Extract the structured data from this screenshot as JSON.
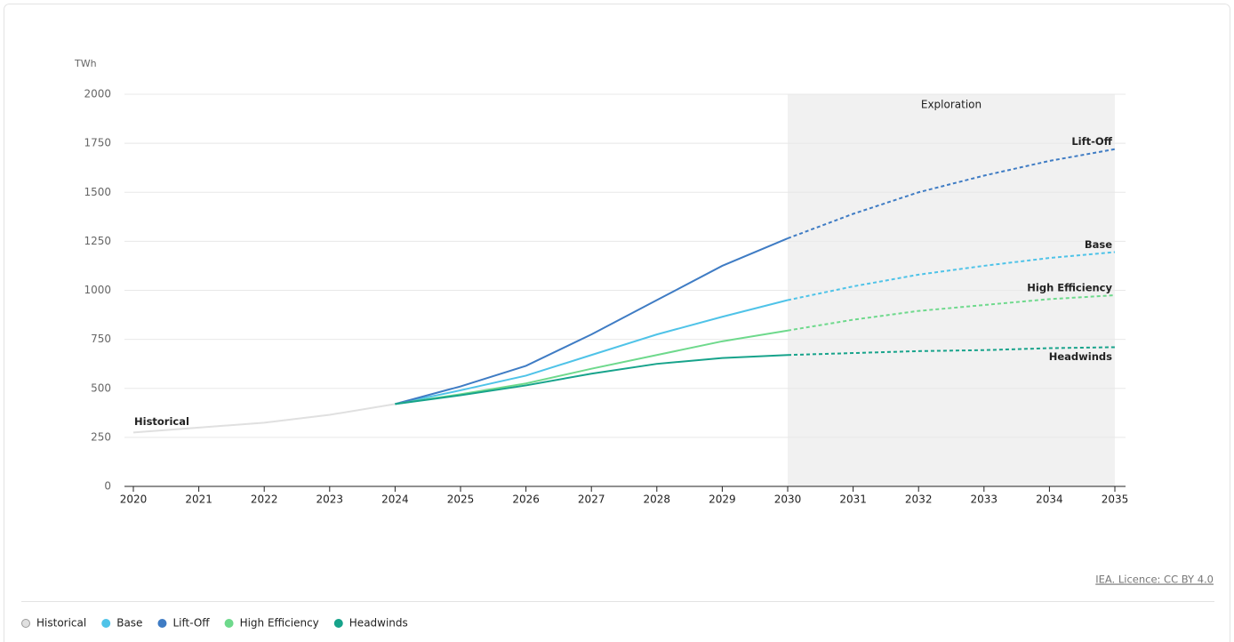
{
  "chart_data": {
    "type": "line",
    "y_unit": "TWh",
    "ylim": [
      0,
      2000
    ],
    "yticks": [
      0,
      250,
      500,
      750,
      1000,
      1250,
      1500,
      1750,
      2000
    ],
    "xlim": [
      2020,
      2035
    ],
    "xticks": [
      2020,
      2021,
      2022,
      2023,
      2024,
      2025,
      2026,
      2027,
      2028,
      2029,
      2030,
      2031,
      2032,
      2033,
      2034,
      2035
    ],
    "grid": true,
    "shaded_region": {
      "label": "Exploration",
      "from": 2030,
      "to": 2035
    },
    "series": [
      {
        "name": "Historical",
        "color": "#e0e0e0",
        "x": [
          2020,
          2021,
          2022,
          2023,
          2024
        ],
        "values": [
          275,
          300,
          325,
          365,
          420
        ]
      },
      {
        "name": "Base",
        "color": "#4fc3e8",
        "x": [
          2024,
          2025,
          2026,
          2027,
          2028,
          2029,
          2030,
          2031,
          2032,
          2033,
          2034,
          2035
        ],
        "values": [
          420,
          490,
          565,
          670,
          775,
          865,
          950,
          1020,
          1080,
          1125,
          1165,
          1195
        ]
      },
      {
        "name": "Lift-Off",
        "color": "#3f7cc4",
        "x": [
          2024,
          2025,
          2026,
          2027,
          2028,
          2029,
          2030,
          2031,
          2032,
          2033,
          2034,
          2035
        ],
        "values": [
          420,
          510,
          615,
          775,
          950,
          1125,
          1265,
          1390,
          1500,
          1585,
          1660,
          1720
        ]
      },
      {
        "name": "High Efficiency",
        "color": "#6ed98c",
        "x": [
          2024,
          2025,
          2026,
          2027,
          2028,
          2029,
          2030,
          2031,
          2032,
          2033,
          2034,
          2035
        ],
        "values": [
          420,
          470,
          525,
          600,
          670,
          740,
          795,
          850,
          895,
          925,
          955,
          975
        ]
      },
      {
        "name": "Headwinds",
        "color": "#17a38b",
        "x": [
          2024,
          2025,
          2026,
          2027,
          2028,
          2029,
          2030,
          2031,
          2032,
          2033,
          2034,
          2035
        ],
        "values": [
          420,
          465,
          515,
          575,
          625,
          655,
          670,
          680,
          690,
          695,
          705,
          710
        ]
      }
    ],
    "source": "IEA. Licence: CC BY 4.0"
  }
}
